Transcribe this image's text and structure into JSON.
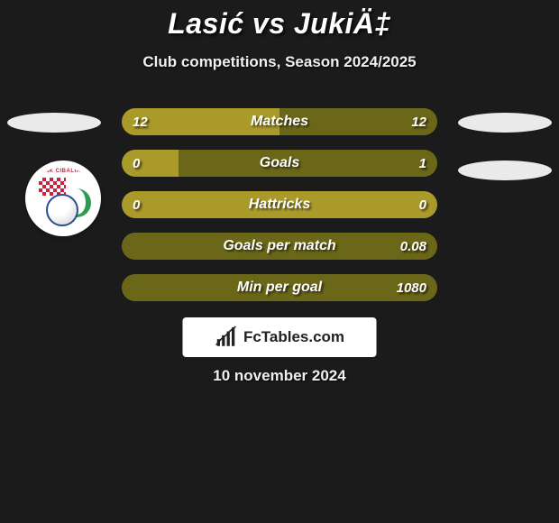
{
  "header": {
    "title": "Lasić vs JukiÄ‡",
    "subtitle": "Club competitions, Season 2024/2025"
  },
  "colors": {
    "gold": "#aa9a2a",
    "olive": "#6b6718",
    "background": "#1b1b1b",
    "ellipse": "#eaeaea",
    "text": "#ffffff"
  },
  "badge": {
    "text": "HNK CIBALIA"
  },
  "stats": [
    {
      "label": "Matches",
      "left_value": "12",
      "right_value": "12",
      "left_pct": 50,
      "right_pct": 50,
      "left_color": "#aa9a2a",
      "right_color": "#6b6718"
    },
    {
      "label": "Goals",
      "left_value": "0",
      "right_value": "1",
      "left_pct": 18,
      "right_pct": 82,
      "left_color": "#aa9a2a",
      "right_color": "#6b6718"
    },
    {
      "label": "Hattricks",
      "left_value": "0",
      "right_value": "0",
      "left_pct": 100,
      "right_pct": 0,
      "left_color": "#aa9a2a",
      "right_color": "#6b6718"
    },
    {
      "label": "Goals per match",
      "left_value": "",
      "right_value": "0.08",
      "left_pct": 0,
      "right_pct": 100,
      "left_color": "#aa9a2a",
      "right_color": "#6b6718"
    },
    {
      "label": "Min per goal",
      "left_value": "",
      "right_value": "1080",
      "left_pct": 0,
      "right_pct": 100,
      "left_color": "#aa9a2a",
      "right_color": "#6b6718"
    }
  ],
  "branding": {
    "text": "FcTables.com"
  },
  "date": "10 november 2024"
}
